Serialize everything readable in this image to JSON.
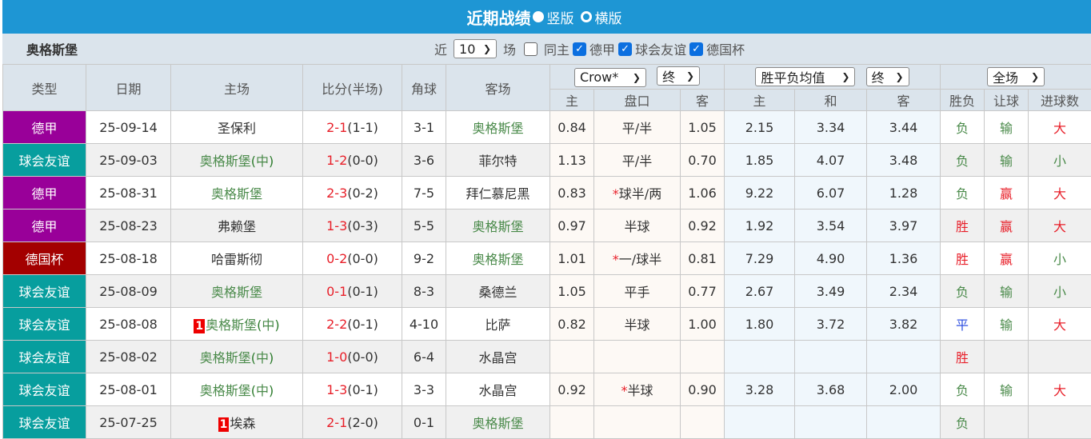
{
  "header": {
    "title": "近期战绩",
    "view_options": [
      {
        "label": "竖版",
        "selected": true
      },
      {
        "label": "横版",
        "selected": false
      }
    ]
  },
  "filter": {
    "team": "奥格斯堡",
    "near_label": "近",
    "count": "10",
    "match_label": "场",
    "checks": [
      {
        "label": "同主",
        "checked": false
      },
      {
        "label": "德甲",
        "checked": true
      },
      {
        "label": "球会友谊",
        "checked": true
      },
      {
        "label": "德国杯",
        "checked": true
      }
    ]
  },
  "columns": {
    "type": "类型",
    "date": "日期",
    "home": "主场",
    "score": "比分(半场)",
    "corner": "角球",
    "away": "客场",
    "asia_company": "Crow*",
    "asia_state": "终",
    "asia_sub": [
      "主",
      "盘口",
      "客"
    ],
    "eu_type": "胜平负均值",
    "eu_state": "终",
    "eu_sub": [
      "主",
      "和",
      "客"
    ],
    "period": "全场",
    "result_sub": [
      "胜负",
      "让球",
      "进球数"
    ]
  },
  "league_colors": {
    "德甲": "#990099",
    "球会友谊": "#079e9e",
    "德国杯": "#a30000"
  },
  "rows": [
    {
      "type": "德甲",
      "date": "25-09-14",
      "home": "圣保利",
      "home_rank": "",
      "neutral": false,
      "score": "2-1",
      "half": "(1-1)",
      "corner": "3-1",
      "away": "奥格斯堡",
      "ah": "0.84",
      "line": "平/半",
      "star": false,
      "aa": "1.05",
      "e1": "2.15",
      "ex": "3.34",
      "e2": "3.44",
      "wl": "负",
      "hc": "输",
      "ou": "大"
    },
    {
      "type": "球会友谊",
      "date": "25-09-03",
      "home": "奥格斯堡",
      "home_rank": "",
      "neutral": true,
      "score": "1-2",
      "half": "(0-0)",
      "corner": "3-6",
      "away": "菲尔特",
      "ah": "1.13",
      "line": "平/半",
      "star": false,
      "aa": "0.70",
      "e1": "1.85",
      "ex": "4.07",
      "e2": "3.48",
      "wl": "负",
      "hc": "输",
      "ou": "小"
    },
    {
      "type": "德甲",
      "date": "25-08-31",
      "home": "奥格斯堡",
      "home_rank": "",
      "neutral": false,
      "score": "2-3",
      "half": "(0-2)",
      "corner": "7-5",
      "away": "拜仁慕尼黑",
      "ah": "0.83",
      "line": "球半/两",
      "star": true,
      "aa": "1.06",
      "e1": "9.22",
      "ex": "6.07",
      "e2": "1.28",
      "wl": "负",
      "hc": "赢",
      "ou": "大"
    },
    {
      "type": "德甲",
      "date": "25-08-23",
      "home": "弗赖堡",
      "home_rank": "",
      "neutral": false,
      "score": "1-3",
      "half": "(0-3)",
      "corner": "5-5",
      "away": "奥格斯堡",
      "ah": "0.97",
      "line": "半球",
      "star": false,
      "aa": "0.92",
      "e1": "1.92",
      "ex": "3.54",
      "e2": "3.97",
      "wl": "胜",
      "hc": "赢",
      "ou": "大"
    },
    {
      "type": "德国杯",
      "date": "25-08-18",
      "home": "哈雷斯彻",
      "home_rank": "",
      "neutral": false,
      "score": "0-2",
      "half": "(0-0)",
      "corner": "9-2",
      "away": "奥格斯堡",
      "ah": "1.01",
      "line": "一/球半",
      "star": true,
      "aa": "0.81",
      "e1": "7.29",
      "ex": "4.90",
      "e2": "1.36",
      "wl": "胜",
      "hc": "赢",
      "ou": "小"
    },
    {
      "type": "球会友谊",
      "date": "25-08-09",
      "home": "奥格斯堡",
      "home_rank": "",
      "neutral": false,
      "score": "0-1",
      "half": "(0-1)",
      "corner": "8-3",
      "away": "桑德兰",
      "ah": "1.05",
      "line": "平手",
      "star": false,
      "aa": "0.77",
      "e1": "2.67",
      "ex": "3.49",
      "e2": "2.34",
      "wl": "负",
      "hc": "输",
      "ou": "小"
    },
    {
      "type": "球会友谊",
      "date": "25-08-08",
      "home": "奥格斯堡",
      "home_rank": "1",
      "neutral": true,
      "score": "2-2",
      "half": "(0-1)",
      "corner": "4-10",
      "away": "比萨",
      "ah": "0.82",
      "line": "半球",
      "star": false,
      "aa": "1.00",
      "e1": "1.80",
      "ex": "3.72",
      "e2": "3.82",
      "wl": "平",
      "hc": "输",
      "ou": "大"
    },
    {
      "type": "球会友谊",
      "date": "25-08-02",
      "home": "奥格斯堡",
      "home_rank": "",
      "neutral": true,
      "score": "1-0",
      "half": "(0-0)",
      "corner": "6-4",
      "away": "水晶宫",
      "ah": "",
      "line": "",
      "star": false,
      "aa": "",
      "e1": "",
      "ex": "",
      "e2": "",
      "wl": "胜",
      "hc": "",
      "ou": ""
    },
    {
      "type": "球会友谊",
      "date": "25-08-01",
      "home": "奥格斯堡",
      "home_rank": "",
      "neutral": true,
      "score": "1-3",
      "half": "(0-1)",
      "corner": "3-3",
      "away": "水晶宫",
      "ah": "0.92",
      "line": "半球",
      "star": true,
      "aa": "0.90",
      "e1": "3.28",
      "ex": "3.68",
      "e2": "2.00",
      "wl": "负",
      "hc": "输",
      "ou": "大"
    },
    {
      "type": "球会友谊",
      "date": "25-07-25",
      "home": "埃森",
      "home_rank": "1",
      "neutral": false,
      "score": "2-1",
      "half": "(2-0)",
      "corner": "0-1",
      "away": "奥格斯堡",
      "ah": "",
      "line": "",
      "star": false,
      "aa": "",
      "e1": "",
      "ex": "",
      "e2": "",
      "wl": "负",
      "hc": "",
      "ou": ""
    }
  ]
}
